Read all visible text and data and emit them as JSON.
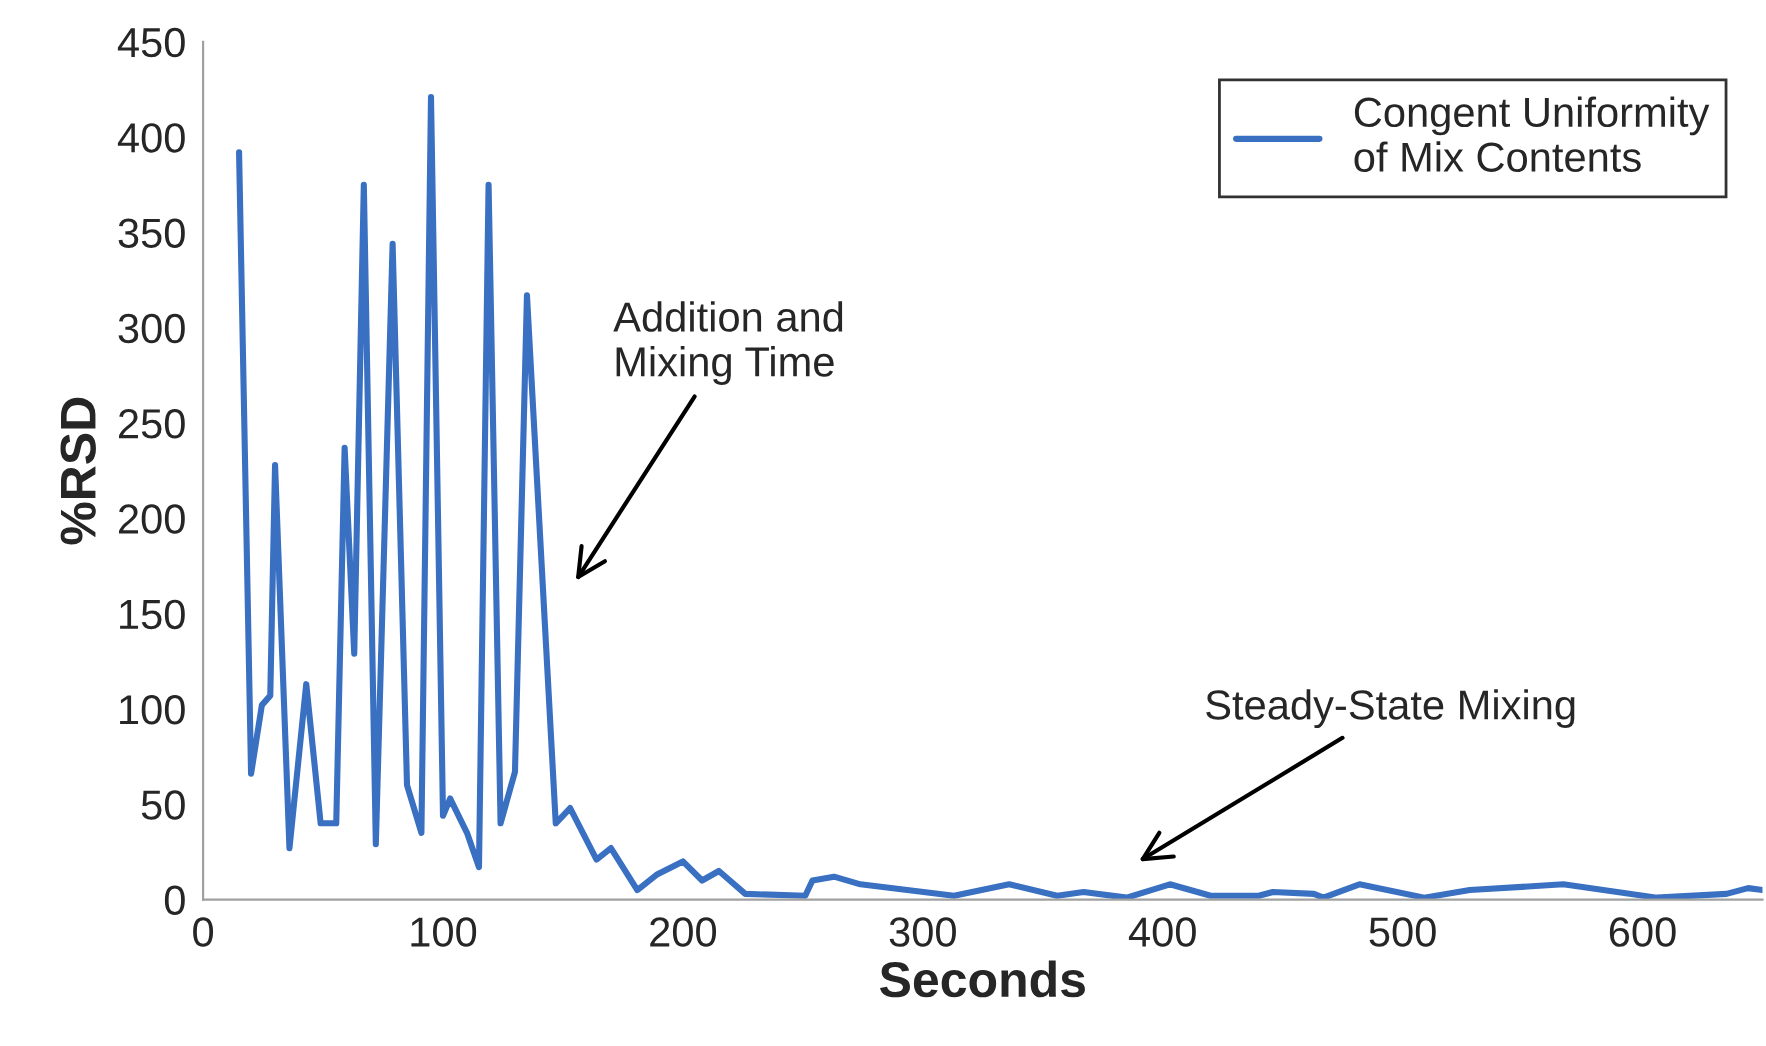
{
  "chart_data": {
    "type": "line",
    "xlabel": "Seconds",
    "ylabel": "%RSD",
    "xlim": [
      0,
      650
    ],
    "xticks": [
      0,
      100,
      200,
      300,
      400,
      500,
      600
    ],
    "ylim": [
      0,
      450
    ],
    "yticks": [
      0,
      50,
      100,
      150,
      200,
      250,
      300,
      350,
      400,
      450
    ],
    "grid": false,
    "legend": "top right",
    "marker": "none",
    "line_style": "solid",
    "series": [
      {
        "name": "Congent Uniformity\nof Mix Contents",
        "color": "#3a70c2",
        "x": [
          15,
          20,
          24.5,
          28,
          30,
          36,
          43,
          49,
          55.5,
          59,
          63,
          67,
          72,
          79,
          85,
          91,
          95,
          100,
          103,
          110,
          115,
          119,
          124,
          130,
          135,
          147,
          153,
          164,
          170,
          181,
          189,
          200,
          208,
          215,
          226,
          251,
          254,
          263,
          274,
          313,
          336,
          356,
          367,
          385,
          403,
          420,
          440,
          446,
          463,
          467,
          482,
          509,
          528,
          567,
          606,
          635,
          644,
          650
        ],
        "values": [
          392,
          66,
          102,
          107,
          228,
          27,
          113,
          40,
          40,
          237,
          129,
          375,
          29,
          344,
          60,
          35,
          421,
          44,
          53,
          35,
          17,
          375,
          40,
          67,
          317,
          40,
          48,
          21,
          27,
          5,
          13,
          20,
          10,
          15,
          3,
          2,
          10,
          12,
          8,
          2,
          8,
          2,
          4,
          1,
          8,
          2,
          2,
          4,
          3,
          1,
          8,
          1,
          5,
          8,
          1,
          3,
          6,
          5
        ]
      }
    ],
    "annotations": [
      "Addition and\nMixing Time",
      "Steady-State Mixing"
    ]
  }
}
